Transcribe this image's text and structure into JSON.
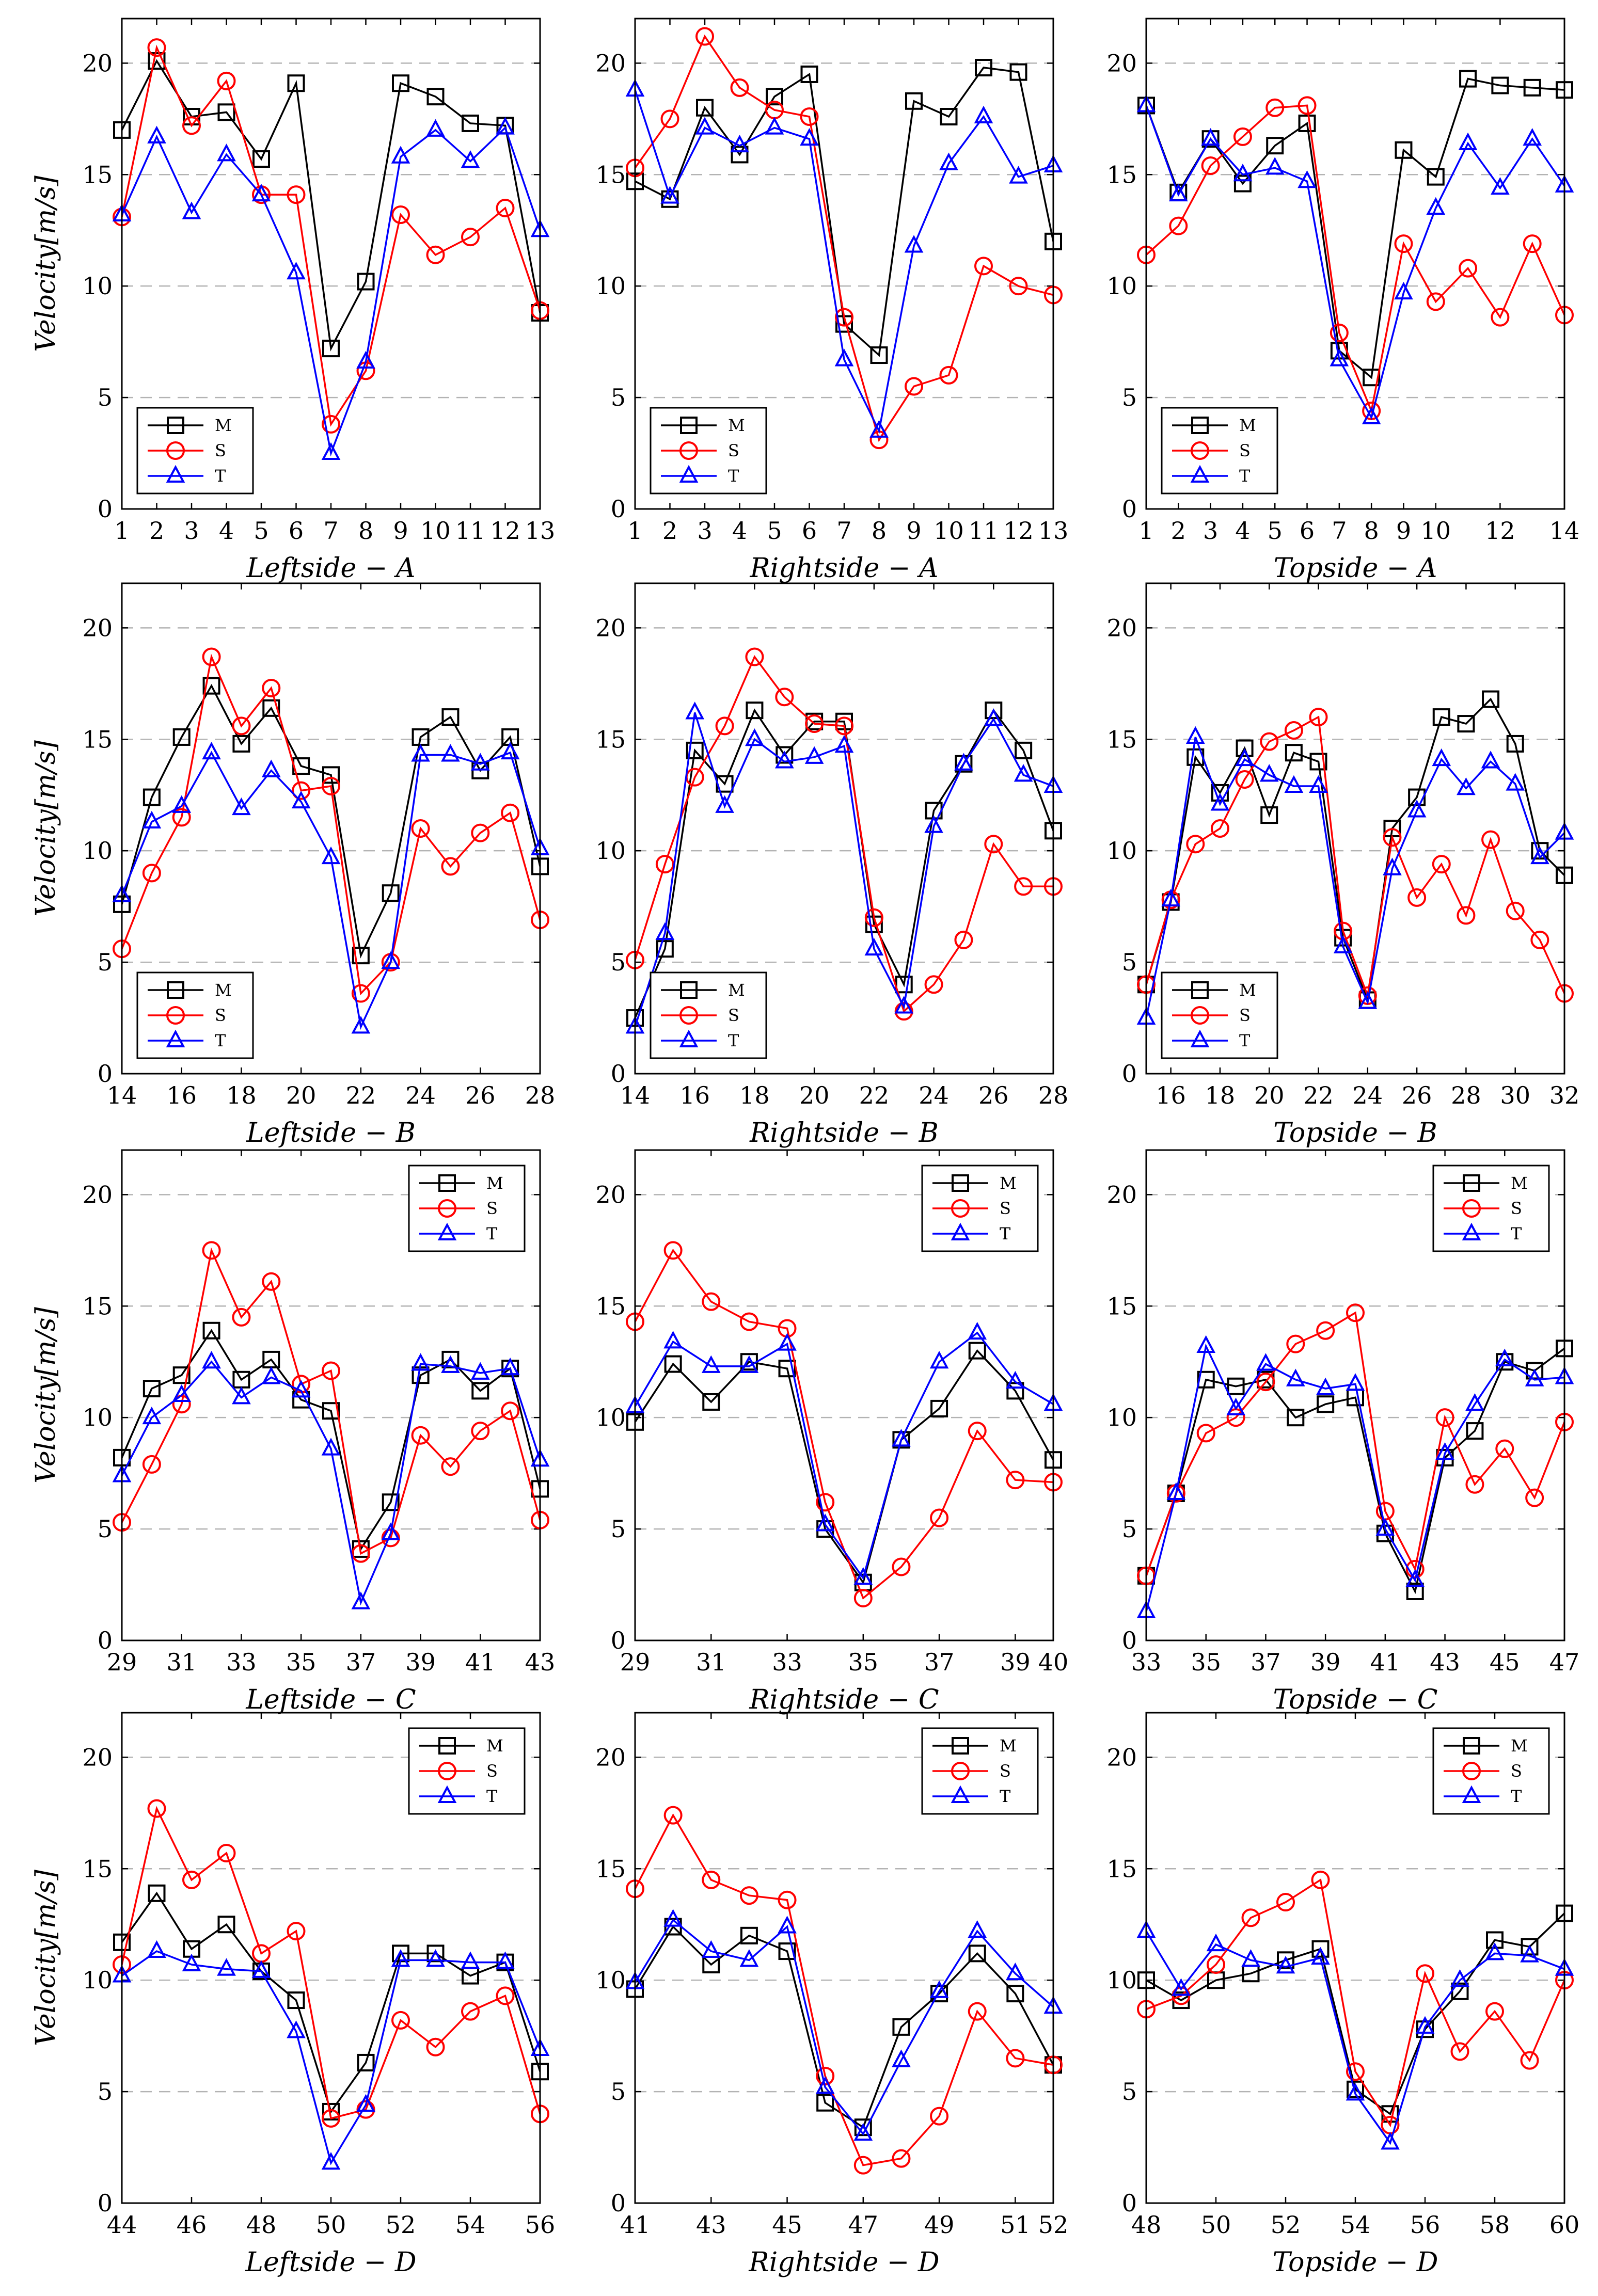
{
  "figure": {
    "title": ""
  },
  "colors": {
    "M": "#000000",
    "S": "#ff0000",
    "T": "#0000ff",
    "grid": "#b3b3b3"
  },
  "chart_data": [
    {
      "type": "line",
      "id": "leftside-a",
      "xlabel": "Leftside − A",
      "ylabel": "Velocity[m/s]",
      "ylim": [
        0,
        22
      ],
      "yticks": [
        0,
        5,
        10,
        15,
        20
      ],
      "xlim": [
        1,
        13
      ],
      "xticks": [
        1,
        2,
        3,
        4,
        5,
        6,
        7,
        8,
        9,
        10,
        11,
        12,
        13
      ],
      "legend": "bottom-left",
      "x": [
        1,
        2,
        3,
        4,
        5,
        6,
        7,
        8,
        9,
        10,
        11,
        12,
        13
      ],
      "series": [
        {
          "name": "M",
          "values": [
            17.0,
            20.1,
            17.6,
            17.8,
            15.7,
            19.1,
            7.2,
            10.2,
            19.1,
            18.5,
            17.3,
            17.2,
            8.8
          ]
        },
        {
          "name": "S",
          "values": [
            13.1,
            20.7,
            17.2,
            19.2,
            14.1,
            14.1,
            3.8,
            6.2,
            13.2,
            11.4,
            12.2,
            13.5,
            8.9
          ]
        },
        {
          "name": "T",
          "values": [
            13.2,
            16.7,
            13.3,
            15.9,
            14.1,
            10.6,
            2.5,
            6.6,
            15.8,
            17.0,
            15.6,
            17.1,
            12.5
          ]
        }
      ]
    },
    {
      "type": "line",
      "id": "rightside-a",
      "xlabel": "Rightside − A",
      "ylabel": "",
      "ylim": [
        0,
        22
      ],
      "yticks": [
        0,
        5,
        10,
        15,
        20
      ],
      "xlim": [
        1,
        13
      ],
      "xticks": [
        1,
        2,
        3,
        4,
        5,
        6,
        7,
        8,
        9,
        10,
        11,
        12,
        13
      ],
      "legend": "bottom-left",
      "x": [
        1,
        2,
        3,
        4,
        5,
        6,
        7,
        8,
        9,
        10,
        11,
        12,
        13
      ],
      "series": [
        {
          "name": "M",
          "values": [
            14.7,
            13.9,
            18.0,
            15.9,
            18.5,
            19.5,
            8.3,
            6.9,
            18.3,
            17.6,
            19.8,
            19.6,
            12.0
          ]
        },
        {
          "name": "S",
          "values": [
            15.3,
            17.5,
            21.2,
            18.9,
            17.9,
            17.6,
            8.6,
            3.1,
            5.5,
            6.0,
            10.9,
            10.0,
            9.6
          ]
        },
        {
          "name": "T",
          "values": [
            18.8,
            14.0,
            17.1,
            16.3,
            17.1,
            16.6,
            6.7,
            3.5,
            11.8,
            15.5,
            17.6,
            14.9,
            15.4
          ]
        }
      ]
    },
    {
      "type": "line",
      "id": "topside-a",
      "xlabel": "Topside − A",
      "ylabel": "",
      "ylim": [
        0,
        22
      ],
      "yticks": [
        0,
        5,
        10,
        15,
        20
      ],
      "xlim": [
        1,
        14
      ],
      "xticks": [
        1,
        2,
        3,
        4,
        5,
        6,
        7,
        8,
        9,
        10,
        12,
        14
      ],
      "legend": "bottom-left",
      "x": [
        1,
        2,
        3,
        4,
        5,
        6,
        7,
        8,
        9,
        10,
        11,
        12,
        13,
        14
      ],
      "series": [
        {
          "name": "M",
          "values": [
            18.1,
            14.2,
            16.6,
            14.6,
            16.3,
            17.3,
            7.1,
            5.9,
            16.1,
            14.9,
            19.3,
            19.0,
            18.9,
            18.8
          ]
        },
        {
          "name": "S",
          "values": [
            11.4,
            12.7,
            15.4,
            16.7,
            18.0,
            18.1,
            7.9,
            4.4,
            11.9,
            9.3,
            10.8,
            8.6,
            11.9,
            8.7
          ]
        },
        {
          "name": "T",
          "values": [
            18.1,
            14.1,
            16.6,
            15.0,
            15.3,
            14.7,
            6.7,
            4.1,
            9.7,
            13.5,
            16.4,
            14.4,
            16.6,
            14.5
          ]
        }
      ]
    },
    {
      "type": "line",
      "id": "leftside-b",
      "xlabel": "Leftside − B",
      "ylabel": "Velocity[m/s]",
      "ylim": [
        0,
        22
      ],
      "yticks": [
        0,
        5,
        10,
        15,
        20
      ],
      "xlim": [
        14,
        28
      ],
      "xticks": [
        14,
        16,
        18,
        20,
        22,
        24,
        26,
        28
      ],
      "legend": "bottom-left",
      "x": [
        14,
        15,
        16,
        17,
        18,
        19,
        20,
        21,
        22,
        23,
        24,
        25,
        26,
        27,
        28
      ],
      "series": [
        {
          "name": "M",
          "values": [
            7.6,
            12.4,
            15.1,
            17.4,
            14.8,
            16.4,
            13.8,
            13.4,
            5.3,
            8.1,
            15.1,
            16.0,
            13.6,
            15.1,
            9.3
          ]
        },
        {
          "name": "S",
          "values": [
            5.6,
            9.0,
            11.5,
            18.7,
            15.6,
            17.3,
            12.7,
            12.9,
            3.6,
            5.0,
            11.0,
            9.3,
            10.8,
            11.7,
            6.9
          ]
        },
        {
          "name": "T",
          "values": [
            8.0,
            11.3,
            12.0,
            14.4,
            11.9,
            13.6,
            12.2,
            9.7,
            2.1,
            5.0,
            14.3,
            14.3,
            13.9,
            14.4,
            10.1
          ]
        }
      ]
    },
    {
      "type": "line",
      "id": "rightside-b",
      "xlabel": "Rightside − B",
      "ylabel": "",
      "ylim": [
        0,
        22
      ],
      "yticks": [
        0,
        5,
        10,
        15,
        20
      ],
      "xlim": [
        14,
        28
      ],
      "xticks": [
        14,
        16,
        18,
        20,
        22,
        24,
        26,
        28
      ],
      "legend": "bottom-left",
      "x": [
        14,
        15,
        16,
        17,
        18,
        19,
        20,
        21,
        22,
        23,
        24,
        25,
        26,
        27,
        28
      ],
      "series": [
        {
          "name": "M",
          "values": [
            2.5,
            5.6,
            14.5,
            13.0,
            16.3,
            14.3,
            15.8,
            15.8,
            6.7,
            4.0,
            11.8,
            13.9,
            16.3,
            14.5,
            10.9
          ]
        },
        {
          "name": "S",
          "values": [
            5.1,
            9.4,
            13.3,
            15.6,
            18.7,
            16.9,
            15.7,
            15.6,
            7.0,
            2.8,
            4.0,
            6.0,
            10.3,
            8.4,
            8.4
          ]
        },
        {
          "name": "T",
          "values": [
            2.1,
            6.3,
            16.2,
            12.0,
            15.0,
            14.0,
            14.2,
            14.7,
            5.6,
            3.0,
            11.1,
            13.9,
            15.9,
            13.4,
            12.9
          ]
        }
      ]
    },
    {
      "type": "line",
      "id": "topside-b",
      "xlabel": "Topside − B",
      "ylabel": "",
      "ylim": [
        0,
        22
      ],
      "yticks": [
        0,
        5,
        10,
        15,
        20
      ],
      "xlim": [
        15,
        32
      ],
      "xticks": [
        16,
        18,
        20,
        22,
        24,
        26,
        28,
        30,
        32
      ],
      "legend": "bottom-left",
      "x": [
        15,
        16,
        17,
        18,
        19,
        20,
        21,
        22,
        23,
        24,
        25,
        26,
        27,
        28,
        29,
        30,
        31,
        32
      ],
      "series": [
        {
          "name": "M",
          "values": [
            4.0,
            7.7,
            14.2,
            12.6,
            14.6,
            11.6,
            14.4,
            14.0,
            6.1,
            3.3,
            11.0,
            12.4,
            16.0,
            15.7,
            16.8,
            14.8,
            10.0,
            8.9
          ]
        },
        {
          "name": "S",
          "values": [
            4.0,
            7.8,
            10.3,
            11.0,
            13.2,
            14.9,
            15.4,
            16.0,
            6.4,
            3.5,
            10.6,
            7.9,
            9.4,
            7.1,
            10.5,
            7.3,
            6.0,
            3.6
          ]
        },
        {
          "name": "T",
          "values": [
            2.5,
            7.8,
            15.1,
            12.1,
            14.1,
            13.4,
            12.9,
            12.9,
            5.7,
            3.2,
            9.2,
            11.8,
            14.1,
            12.8,
            14.0,
            13.0,
            9.7,
            10.8
          ]
        }
      ]
    },
    {
      "type": "line",
      "id": "leftside-c",
      "xlabel": "Leftside − C",
      "ylabel": "Velocity[m/s]",
      "ylim": [
        0,
        22
      ],
      "yticks": [
        0,
        5,
        10,
        15,
        20
      ],
      "xlim": [
        29,
        43
      ],
      "xticks": [
        29,
        31,
        33,
        35,
        37,
        39,
        41,
        43
      ],
      "legend": "top-right",
      "x": [
        29,
        30,
        31,
        32,
        33,
        34,
        35,
        36,
        37,
        38,
        39,
        40,
        41,
        42,
        43
      ],
      "series": [
        {
          "name": "M",
          "values": [
            8.2,
            11.3,
            11.9,
            13.9,
            11.7,
            12.6,
            10.8,
            10.3,
            4.1,
            6.2,
            11.9,
            12.6,
            11.2,
            12.2,
            6.8
          ]
        },
        {
          "name": "S",
          "values": [
            5.3,
            7.9,
            10.6,
            17.5,
            14.5,
            16.1,
            11.5,
            12.1,
            3.9,
            4.6,
            9.2,
            7.8,
            9.4,
            10.3,
            5.4
          ]
        },
        {
          "name": "T",
          "values": [
            7.4,
            10.0,
            11.0,
            12.5,
            10.9,
            11.8,
            11.2,
            8.6,
            1.7,
            4.8,
            12.4,
            12.3,
            12.0,
            12.2,
            8.1
          ]
        }
      ]
    },
    {
      "type": "line",
      "id": "rightside-c",
      "xlabel": "Rightside − C",
      "ylabel": "",
      "ylim": [
        0,
        22
      ],
      "yticks": [
        0,
        5,
        10,
        15,
        20
      ],
      "xlim": [
        29,
        40
      ],
      "xticks": [
        29,
        31,
        33,
        35,
        37,
        39,
        40
      ],
      "legend": "top-right",
      "x": [
        29,
        30,
        31,
        32,
        33,
        34,
        35,
        36,
        37,
        38,
        39,
        40
      ],
      "series": [
        {
          "name": "M",
          "values": [
            9.8,
            12.4,
            10.7,
            12.5,
            12.2,
            5.0,
            2.6,
            9.0,
            10.4,
            13.0,
            11.2,
            8.1
          ]
        },
        {
          "name": "S",
          "values": [
            14.3,
            17.5,
            15.2,
            14.3,
            14.0,
            6.2,
            1.9,
            3.3,
            5.5,
            9.4,
            7.2,
            7.1
          ]
        },
        {
          "name": "T",
          "values": [
            10.5,
            13.4,
            12.3,
            12.3,
            13.3,
            5.2,
            2.8,
            9.0,
            12.5,
            13.8,
            11.6,
            10.6
          ]
        }
      ]
    },
    {
      "type": "line",
      "id": "topside-c",
      "xlabel": "Topside − C",
      "ylabel": "",
      "ylim": [
        0,
        22
      ],
      "yticks": [
        0,
        5,
        10,
        15,
        20
      ],
      "xlim": [
        33,
        47
      ],
      "xticks": [
        33,
        35,
        37,
        39,
        41,
        43,
        45,
        47
      ],
      "legend": "top-right",
      "x": [
        33,
        34,
        35,
        36,
        37,
        38,
        39,
        40,
        41,
        42,
        43,
        44,
        45,
        46,
        47
      ],
      "series": [
        {
          "name": "M",
          "values": [
            2.9,
            6.6,
            11.7,
            11.4,
            11.7,
            10.0,
            10.6,
            10.9,
            4.8,
            2.2,
            8.2,
            9.4,
            12.5,
            12.1,
            13.1
          ]
        },
        {
          "name": "S",
          "values": [
            2.9,
            6.6,
            9.3,
            10.0,
            11.6,
            13.3,
            13.9,
            14.7,
            5.8,
            3.2,
            10.0,
            7.0,
            8.6,
            6.4,
            9.8
          ]
        },
        {
          "name": "T",
          "values": [
            1.3,
            6.6,
            13.2,
            10.4,
            12.4,
            11.7,
            11.3,
            11.5,
            5.0,
            2.7,
            8.4,
            10.6,
            12.6,
            11.7,
            11.8
          ]
        }
      ]
    },
    {
      "type": "line",
      "id": "leftside-d",
      "xlabel": "Leftside − D",
      "ylabel": "Velocity[m/s]",
      "ylim": [
        0,
        22
      ],
      "yticks": [
        0,
        5,
        10,
        15,
        20
      ],
      "xlim": [
        44,
        56
      ],
      "xticks": [
        44,
        46,
        48,
        50,
        52,
        54,
        56
      ],
      "legend": "top-right",
      "x": [
        44,
        45,
        46,
        47,
        48,
        49,
        50,
        51,
        52,
        53,
        54,
        55,
        56
      ],
      "series": [
        {
          "name": "M",
          "values": [
            11.7,
            13.9,
            11.4,
            12.5,
            10.4,
            9.1,
            4.1,
            6.3,
            11.2,
            11.2,
            10.2,
            10.8,
            5.9
          ]
        },
        {
          "name": "S",
          "values": [
            10.7,
            17.7,
            14.5,
            15.7,
            11.2,
            12.2,
            3.8,
            4.2,
            8.2,
            7.0,
            8.6,
            9.3,
            4.0
          ]
        },
        {
          "name": "T",
          "values": [
            10.2,
            11.3,
            10.7,
            10.5,
            10.4,
            7.7,
            1.8,
            4.4,
            10.9,
            10.9,
            10.8,
            10.8,
            6.9
          ]
        }
      ]
    },
    {
      "type": "line",
      "id": "rightside-d",
      "xlabel": "Rightside − D",
      "ylabel": "",
      "ylim": [
        0,
        22
      ],
      "yticks": [
        0,
        5,
        10,
        15,
        20
      ],
      "xlim": [
        41,
        52
      ],
      "xticks": [
        41,
        43,
        45,
        47,
        49,
        51,
        52
      ],
      "legend": "top-right",
      "x": [
        41,
        42,
        43,
        44,
        45,
        46,
        47,
        48,
        49,
        50,
        51,
        52
      ],
      "series": [
        {
          "name": "M",
          "values": [
            9.6,
            12.4,
            10.7,
            12.0,
            11.3,
            4.5,
            3.4,
            7.9,
            9.4,
            11.2,
            9.4,
            6.2
          ]
        },
        {
          "name": "S",
          "values": [
            14.1,
            17.4,
            14.5,
            13.8,
            13.6,
            5.7,
            1.7,
            2.0,
            3.9,
            8.6,
            6.5,
            6.2
          ]
        },
        {
          "name": "T",
          "values": [
            9.9,
            12.7,
            11.3,
            10.9,
            12.4,
            5.2,
            3.1,
            6.4,
            9.5,
            12.2,
            10.3,
            8.8
          ]
        }
      ]
    },
    {
      "type": "line",
      "id": "topside-d",
      "xlabel": "Topside − D",
      "ylabel": "",
      "ylim": [
        0,
        22
      ],
      "yticks": [
        0,
        5,
        10,
        15,
        20
      ],
      "xlim": [
        48,
        60
      ],
      "xticks": [
        48,
        50,
        52,
        54,
        56,
        58,
        60
      ],
      "legend": "top-right",
      "x": [
        48,
        49,
        50,
        51,
        52,
        53,
        54,
        55,
        56,
        57,
        58,
        59,
        60
      ],
      "series": [
        {
          "name": "M",
          "values": [
            10.0,
            9.1,
            10.0,
            10.3,
            10.9,
            11.4,
            5.1,
            4.0,
            7.8,
            9.5,
            11.8,
            11.5,
            13.0
          ]
        },
        {
          "name": "S",
          "values": [
            8.7,
            9.3,
            10.7,
            12.8,
            13.5,
            14.5,
            5.9,
            3.5,
            10.3,
            6.8,
            8.6,
            6.4,
            10.0
          ]
        },
        {
          "name": "T",
          "values": [
            12.2,
            9.6,
            11.6,
            10.9,
            10.6,
            11.0,
            4.9,
            2.7,
            7.9,
            10.0,
            11.2,
            11.1,
            10.5
          ]
        }
      ]
    }
  ]
}
